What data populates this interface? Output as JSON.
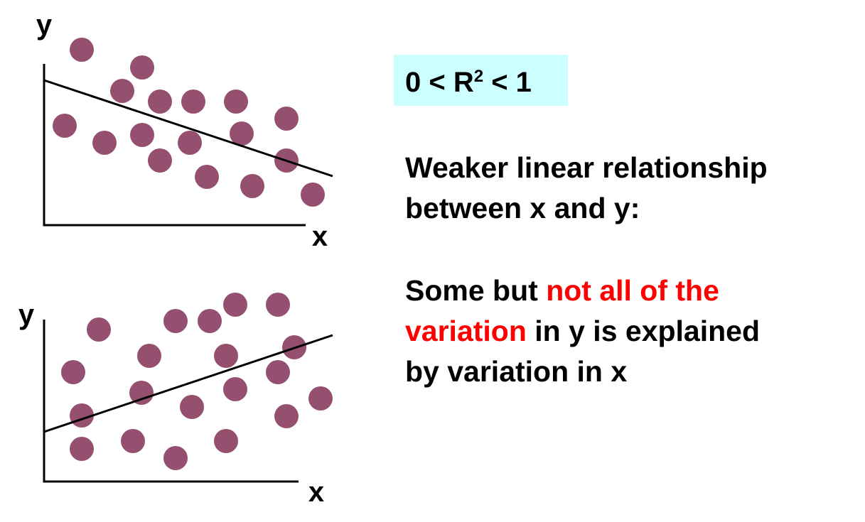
{
  "plots": [
    {
      "y_label": "y",
      "x_label": "x"
    },
    {
      "y_label": "y",
      "x_label": "x"
    }
  ],
  "formula": {
    "base": "0 < R",
    "exponent": "2",
    "tail": " < 1"
  },
  "heading": [
    "Weaker linear relationship",
    "between x and y:"
  ],
  "explanation": [
    [
      {
        "text": "Some but ",
        "color": "#000000"
      },
      {
        "text": "not all of the",
        "color": "#ff0000"
      }
    ],
    [
      {
        "text": "variation",
        "color": "#ff0000"
      },
      {
        "text": " in y is explained",
        "color": "#000000"
      }
    ],
    [
      {
        "text": "by variation in x",
        "color": "#000000"
      }
    ]
  ]
}
